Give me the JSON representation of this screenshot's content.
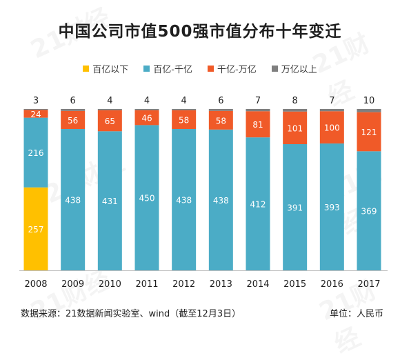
{
  "title": "中国公司市值500强市值分布十年变迁",
  "footer": {
    "source": "数据来源：21数据新闻实验室、wind（截至12月3日）",
    "unit": "单位：人民币"
  },
  "colors": {
    "below_10b": "#FFC000",
    "10b_100b": "#4BACC6",
    "100b_1t": "#F05A28",
    "above_1t": "#7F7F7F"
  },
  "chart_data": {
    "type": "bar",
    "stacked": true,
    "percent_stacked": true,
    "categories": [
      "2008",
      "2009",
      "2010",
      "2011",
      "2012",
      "2013",
      "2014",
      "2015",
      "2016",
      "2017"
    ],
    "series": [
      {
        "name": "百亿以下",
        "color_key": "below_10b",
        "values": [
          257,
          0,
          0,
          0,
          0,
          0,
          0,
          0,
          0,
          0
        ]
      },
      {
        "name": "百亿-千亿",
        "color_key": "10b_100b",
        "values": [
          216,
          438,
          431,
          450,
          438,
          438,
          412,
          391,
          393,
          369
        ]
      },
      {
        "name": "千亿-万亿",
        "color_key": "100b_1t",
        "values": [
          24,
          56,
          65,
          46,
          58,
          58,
          81,
          101,
          100,
          121
        ]
      },
      {
        "name": "万亿以上",
        "color_key": "above_1t",
        "values": [
          3,
          6,
          4,
          4,
          4,
          6,
          7,
          8,
          7,
          10
        ]
      }
    ],
    "legend_position": "top",
    "grid": false
  }
}
